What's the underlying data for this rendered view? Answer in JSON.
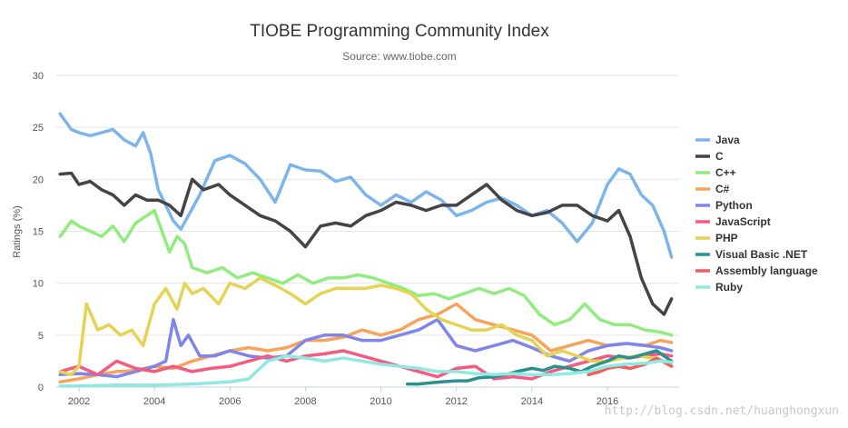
{
  "chart_data": {
    "type": "line",
    "title": "TIOBE Programming Community Index",
    "subtitle": "Source: www.tiobe.com",
    "xlabel": "",
    "ylabel": "Ratings (%)",
    "xlim": [
      2001.4,
      2017.9
    ],
    "ylim": [
      0,
      30
    ],
    "yticks": [
      0,
      5,
      10,
      15,
      20,
      25,
      30
    ],
    "xticks": [
      2002,
      2004,
      2006,
      2008,
      2010,
      2012,
      2014,
      2016
    ],
    "legend": "right",
    "grid": true,
    "series": [
      {
        "name": "Java",
        "color": "#7cb5ec",
        "x": [
          2001.5,
          2001.8,
          2002.0,
          2002.3,
          2002.6,
          2002.9,
          2003.2,
          2003.5,
          2003.7,
          2003.9,
          2004.1,
          2004.3,
          2004.5,
          2004.7,
          2004.9,
          2005.2,
          2005.6,
          2006.0,
          2006.4,
          2006.8,
          2007.2,
          2007.6,
          2008.0,
          2008.4,
          2008.8,
          2009.2,
          2009.6,
          2010.0,
          2010.4,
          2010.8,
          2011.2,
          2011.6,
          2012.0,
          2012.4,
          2012.8,
          2013.2,
          2013.6,
          2014.0,
          2014.4,
          2014.8,
          2015.2,
          2015.6,
          2016.0,
          2016.3,
          2016.6,
          2016.9,
          2017.2,
          2017.5,
          2017.7
        ],
        "y": [
          26.3,
          24.8,
          24.5,
          24.2,
          24.5,
          24.8,
          23.8,
          23.2,
          24.5,
          22.5,
          19.0,
          17.5,
          16.0,
          15.2,
          16.5,
          18.5,
          21.8,
          22.3,
          21.5,
          20.0,
          17.8,
          21.4,
          20.9,
          20.8,
          19.8,
          20.2,
          18.5,
          17.5,
          18.5,
          17.8,
          18.8,
          18.0,
          16.5,
          17.0,
          17.8,
          18.2,
          17.5,
          16.5,
          17.0,
          15.8,
          14.0,
          15.8,
          19.5,
          21.0,
          20.5,
          18.5,
          17.5,
          15.0,
          12.5
        ]
      },
      {
        "name": "C",
        "color": "#434348",
        "x": [
          2001.5,
          2001.8,
          2002.0,
          2002.3,
          2002.6,
          2002.9,
          2003.2,
          2003.5,
          2003.8,
          2004.1,
          2004.4,
          2004.7,
          2005.0,
          2005.3,
          2005.7,
          2006.0,
          2006.4,
          2006.8,
          2007.2,
          2007.6,
          2008.0,
          2008.4,
          2008.8,
          2009.2,
          2009.6,
          2010.0,
          2010.4,
          2010.8,
          2011.2,
          2011.6,
          2012.0,
          2012.4,
          2012.8,
          2013.2,
          2013.6,
          2014.0,
          2014.4,
          2014.8,
          2015.2,
          2015.6,
          2016.0,
          2016.3,
          2016.6,
          2016.9,
          2017.2,
          2017.5,
          2017.7
        ],
        "y": [
          20.5,
          20.6,
          19.5,
          19.8,
          19.0,
          18.5,
          17.5,
          18.5,
          18.0,
          18.0,
          17.5,
          16.5,
          20.0,
          19.0,
          19.5,
          18.5,
          17.5,
          16.5,
          16.0,
          15.0,
          13.5,
          15.5,
          15.8,
          15.5,
          16.5,
          17.0,
          17.8,
          17.5,
          17.0,
          17.5,
          17.5,
          18.5,
          19.5,
          18.0,
          17.0,
          16.5,
          16.8,
          17.5,
          17.5,
          16.5,
          16.0,
          17.0,
          14.5,
          10.5,
          8.0,
          7.0,
          8.5
        ]
      },
      {
        "name": "C++",
        "color": "#90ed7d",
        "x": [
          2001.5,
          2001.8,
          2002.0,
          2002.3,
          2002.6,
          2002.9,
          2003.2,
          2003.5,
          2003.8,
          2004.0,
          2004.2,
          2004.4,
          2004.6,
          2004.8,
          2005.0,
          2005.4,
          2005.8,
          2006.2,
          2006.6,
          2007.0,
          2007.4,
          2007.8,
          2008.2,
          2008.6,
          2009.0,
          2009.4,
          2009.8,
          2010.2,
          2010.6,
          2011.0,
          2011.4,
          2011.8,
          2012.2,
          2012.6,
          2013.0,
          2013.4,
          2013.8,
          2014.2,
          2014.6,
          2015.0,
          2015.4,
          2015.8,
          2016.2,
          2016.6,
          2017.0,
          2017.4,
          2017.7
        ],
        "y": [
          14.5,
          16.0,
          15.5,
          15.0,
          14.5,
          15.5,
          14.0,
          15.8,
          16.5,
          17.0,
          15.0,
          13.0,
          14.5,
          13.8,
          11.5,
          11.0,
          11.5,
          10.5,
          11.0,
          10.5,
          10.0,
          10.8,
          10.0,
          10.5,
          10.5,
          10.8,
          10.5,
          10.0,
          9.5,
          8.8,
          9.0,
          8.5,
          9.0,
          9.5,
          9.0,
          9.5,
          8.8,
          7.0,
          6.0,
          6.5,
          8.0,
          6.5,
          6.0,
          6.0,
          5.5,
          5.3,
          5.0
        ]
      },
      {
        "name": "C#",
        "color": "#f7a35c",
        "x": [
          2001.5,
          2002.0,
          2002.5,
          2003.0,
          2003.5,
          2004.0,
          2004.5,
          2005.0,
          2005.5,
          2006.0,
          2006.5,
          2007.0,
          2007.5,
          2008.0,
          2008.5,
          2009.0,
          2009.5,
          2010.0,
          2010.5,
          2011.0,
          2011.5,
          2012.0,
          2012.5,
          2013.0,
          2013.5,
          2014.0,
          2014.5,
          2015.0,
          2015.5,
          2016.0,
          2016.5,
          2017.0,
          2017.4,
          2017.7
        ],
        "y": [
          0.5,
          0.8,
          1.2,
          1.5,
          1.6,
          2.0,
          1.8,
          2.5,
          3.0,
          3.5,
          3.8,
          3.5,
          3.8,
          4.5,
          4.5,
          4.8,
          5.5,
          5.0,
          5.5,
          6.5,
          7.0,
          8.0,
          6.5,
          6.0,
          5.5,
          5.0,
          3.5,
          4.0,
          4.5,
          4.0,
          4.2,
          4.0,
          4.5,
          4.3
        ]
      },
      {
        "name": "Python",
        "color": "#8085e9",
        "x": [
          2001.5,
          2002.0,
          2002.5,
          2003.0,
          2003.5,
          2004.0,
          2004.3,
          2004.5,
          2004.7,
          2004.9,
          2005.2,
          2005.6,
          2006.0,
          2006.5,
          2007.0,
          2007.5,
          2008.0,
          2008.5,
          2009.0,
          2009.5,
          2010.0,
          2010.5,
          2011.0,
          2011.5,
          2012.0,
          2012.5,
          2013.0,
          2013.5,
          2014.0,
          2014.5,
          2015.0,
          2015.5,
          2016.0,
          2016.5,
          2017.0,
          2017.4,
          2017.7
        ],
        "y": [
          1.2,
          1.3,
          1.2,
          1.0,
          1.5,
          2.0,
          2.5,
          6.5,
          4.0,
          5.0,
          3.0,
          3.0,
          3.5,
          3.0,
          2.8,
          3.0,
          4.5,
          5.0,
          5.0,
          4.5,
          4.5,
          5.0,
          5.5,
          6.5,
          4.0,
          3.5,
          4.0,
          4.5,
          3.8,
          3.0,
          2.5,
          3.5,
          4.0,
          4.2,
          4.0,
          3.8,
          3.5
        ]
      },
      {
        "name": "JavaScript",
        "color": "#f15c80",
        "x": [
          2001.5,
          2002.0,
          2002.5,
          2003.0,
          2003.5,
          2004.0,
          2004.5,
          2005.0,
          2005.5,
          2006.0,
          2006.5,
          2007.0,
          2007.5,
          2008.0,
          2008.5,
          2009.0,
          2009.5,
          2010.0,
          2010.5,
          2011.0,
          2011.5,
          2012.0,
          2012.5,
          2013.0,
          2013.5,
          2014.0,
          2014.5,
          2015.0,
          2015.5,
          2016.0,
          2016.5,
          2017.0,
          2017.4,
          2017.7
        ],
        "y": [
          1.5,
          2.0,
          1.2,
          2.5,
          1.8,
          1.5,
          2.0,
          1.5,
          1.8,
          2.0,
          2.5,
          3.0,
          2.5,
          3.0,
          3.2,
          3.5,
          3.0,
          2.5,
          2.0,
          1.5,
          1.0,
          1.8,
          2.0,
          0.8,
          1.0,
          0.8,
          1.5,
          2.0,
          2.5,
          3.0,
          2.8,
          3.0,
          3.2,
          3.0
        ]
      },
      {
        "name": "PHP",
        "color": "#e4d354",
        "x": [
          2001.5,
          2001.8,
          2002.0,
          2002.2,
          2002.5,
          2002.8,
          2003.1,
          2003.4,
          2003.7,
          2004.0,
          2004.3,
          2004.6,
          2004.8,
          2005.0,
          2005.3,
          2005.7,
          2006.0,
          2006.4,
          2006.8,
          2007.2,
          2007.6,
          2008.0,
          2008.4,
          2008.8,
          2009.2,
          2009.6,
          2010.0,
          2010.4,
          2010.8,
          2011.2,
          2011.6,
          2012.0,
          2012.4,
          2012.8,
          2013.2,
          2013.6,
          2014.0,
          2014.4,
          2014.8,
          2015.2,
          2015.6,
          2016.0,
          2016.4,
          2016.8,
          2017.2,
          2017.5,
          2017.7
        ],
        "y": [
          1.5,
          1.2,
          2.0,
          8.0,
          5.5,
          6.0,
          5.0,
          5.5,
          4.0,
          8.0,
          9.5,
          7.5,
          10.0,
          9.0,
          9.5,
          8.0,
          10.0,
          9.5,
          10.5,
          9.8,
          9.0,
          8.0,
          9.0,
          9.5,
          9.5,
          9.5,
          9.8,
          9.5,
          9.0,
          7.5,
          6.5,
          6.0,
          5.5,
          5.5,
          6.0,
          5.0,
          4.5,
          3.0,
          3.5,
          3.0,
          2.5,
          2.5,
          2.8,
          3.0,
          2.8,
          2.5,
          2.3
        ]
      },
      {
        "name": "Visual Basic .NET",
        "color": "#2b908f",
        "x": [
          2010.7,
          2011.0,
          2011.3,
          2011.6,
          2012.0,
          2012.3,
          2012.6,
          2013.0,
          2013.3,
          2013.6,
          2014.0,
          2014.3,
          2014.6,
          2015.0,
          2015.3,
          2015.6,
          2016.0,
          2016.3,
          2016.6,
          2017.0,
          2017.3,
          2017.7
        ],
        "y": [
          0.3,
          0.3,
          0.4,
          0.5,
          0.6,
          0.6,
          0.9,
          1.0,
          1.2,
          1.5,
          1.8,
          1.6,
          2.0,
          1.8,
          1.5,
          2.0,
          2.5,
          3.0,
          2.8,
          3.2,
          3.5,
          2.5
        ]
      },
      {
        "name": "Assembly language",
        "color": "#f45b5b",
        "x": [
          2015.5,
          2015.8,
          2016.0,
          2016.3,
          2016.6,
          2017.0,
          2017.3,
          2017.7
        ],
        "y": [
          1.2,
          1.5,
          1.8,
          2.0,
          1.8,
          2.2,
          2.8,
          2.0
        ]
      },
      {
        "name": "Ruby",
        "color": "#91e8e1",
        "x": [
          2001.5,
          2002.0,
          2003.0,
          2004.0,
          2005.0,
          2006.0,
          2006.5,
          2007.0,
          2007.5,
          2008.0,
          2008.5,
          2009.0,
          2009.5,
          2010.0,
          2010.5,
          2011.0,
          2011.5,
          2012.0,
          2012.5,
          2013.0,
          2013.5,
          2014.0,
          2014.5,
          2015.0,
          2015.5,
          2016.0,
          2016.5,
          2017.0,
          2017.4,
          2017.7
        ],
        "y": [
          0.1,
          0.1,
          0.2,
          0.2,
          0.3,
          0.5,
          0.8,
          2.5,
          3.0,
          2.8,
          2.5,
          2.8,
          2.5,
          2.2,
          2.0,
          1.8,
          1.5,
          1.5,
          1.3,
          1.2,
          1.3,
          1.2,
          1.2,
          1.3,
          1.5,
          2.0,
          2.2,
          2.3,
          2.5,
          2.4
        ]
      }
    ]
  },
  "watermark": "http://blog.csdn.net/huanghongxun"
}
